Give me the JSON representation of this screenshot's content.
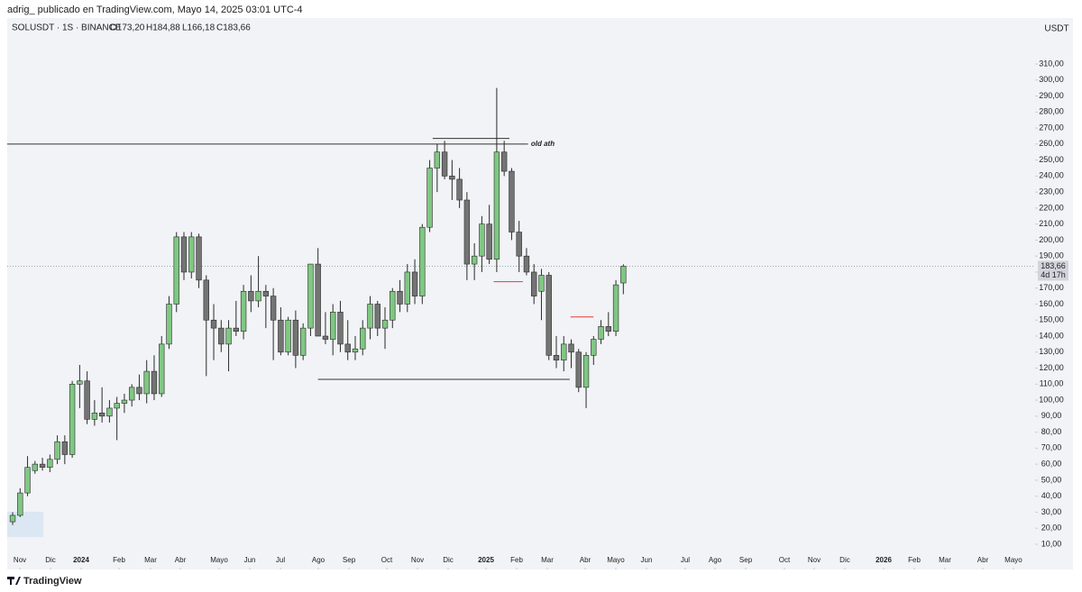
{
  "header": {
    "publisher": "adrig_ publicado en TradingView.com, Mayo 14, 2025 03:01 UTC-4",
    "symbol": "SOLUSDT · 1S · BINANCE",
    "ohlc": [
      "O173,20",
      "H184,88",
      "L166,18",
      "C183,66"
    ]
  },
  "footer": {
    "brand": "TradingView"
  },
  "chart_data": {
    "type": "candlestick",
    "unit": "USDT",
    "x": [
      0,
      1,
      2,
      3,
      4,
      5,
      6,
      7,
      8,
      9,
      10,
      11,
      12,
      13,
      14,
      15,
      16,
      17,
      18,
      19,
      20,
      21,
      22,
      23,
      24,
      25,
      26,
      27,
      28,
      29,
      30,
      31,
      32,
      33,
      34,
      35,
      36,
      37,
      38,
      39,
      40,
      41,
      42,
      43,
      44,
      45,
      46,
      47,
      48,
      49,
      50,
      51,
      52,
      53,
      54,
      55,
      56,
      57,
      58,
      59,
      60,
      61,
      62,
      63,
      64,
      65,
      66,
      67,
      68,
      69,
      70,
      71,
      72,
      73,
      74,
      75,
      76,
      77,
      78,
      79,
      80,
      81,
      82
    ],
    "open": [
      24,
      28,
      42,
      56,
      60,
      58,
      63,
      74,
      66,
      110,
      112,
      88,
      92,
      90,
      95,
      98,
      100,
      108,
      104,
      118,
      104,
      135,
      160,
      202,
      180,
      202,
      175,
      150,
      145,
      135,
      145,
      143,
      168,
      162,
      168,
      165,
      150,
      130,
      150,
      128,
      145,
      185,
      140,
      138,
      155,
      135,
      130,
      132,
      145,
      160,
      145,
      150,
      168,
      160,
      180,
      165,
      208,
      245,
      255,
      240,
      238,
      225,
      185,
      190,
      210,
      188,
      255,
      243,
      205,
      190,
      180,
      168,
      178,
      128,
      125,
      135,
      130,
      108,
      128,
      138,
      146,
      143,
      173.2
    ],
    "high": [
      30,
      45,
      65,
      62,
      64,
      66,
      78,
      78,
      112,
      122,
      118,
      100,
      108,
      100,
      102,
      104,
      110,
      116,
      125,
      128,
      140,
      165,
      205,
      205,
      205,
      204,
      178,
      160,
      150,
      150,
      162,
      172,
      178,
      190,
      172,
      170,
      158,
      152,
      156,
      148,
      185,
      195,
      155,
      160,
      162,
      150,
      140,
      150,
      165,
      162,
      158,
      170,
      175,
      185,
      188,
      210,
      250,
      260,
      262,
      250,
      245,
      230,
      198,
      215,
      222,
      295,
      262,
      245,
      212,
      195,
      185,
      182,
      180,
      140,
      140,
      138,
      132,
      130,
      140,
      150,
      155,
      175,
      184.88
    ],
    "low": [
      22,
      27,
      40,
      54,
      56,
      55,
      60,
      60,
      64,
      95,
      85,
      84,
      86,
      86,
      75,
      92,
      96,
      100,
      98,
      100,
      102,
      132,
      155,
      175,
      176,
      170,
      115,
      125,
      130,
      118,
      140,
      138,
      155,
      158,
      145,
      125,
      128,
      128,
      120,
      125,
      140,
      140,
      135,
      128,
      130,
      125,
      125,
      128,
      138,
      140,
      132,
      145,
      155,
      155,
      160,
      160,
      205,
      230,
      238,
      225,
      220,
      175,
      175,
      180,
      185,
      180,
      240,
      200,
      180,
      178,
      160,
      150,
      125,
      120,
      118,
      120,
      105,
      95,
      122,
      135,
      140,
      140,
      166.18
    ],
    "close": [
      28,
      42,
      58,
      60,
      58,
      63,
      74,
      66,
      110,
      112,
      88,
      92,
      90,
      95,
      98,
      100,
      108,
      104,
      118,
      104,
      135,
      160,
      202,
      180,
      202,
      175,
      150,
      145,
      135,
      145,
      143,
      168,
      162,
      168,
      165,
      150,
      130,
      150,
      128,
      145,
      185,
      140,
      138,
      155,
      135,
      130,
      132,
      145,
      160,
      145,
      150,
      168,
      160,
      180,
      165,
      208,
      245,
      255,
      240,
      238,
      225,
      185,
      190,
      210,
      188,
      255,
      243,
      205,
      190,
      180,
      165,
      178,
      128,
      125,
      135,
      130,
      108,
      128,
      138,
      146,
      143,
      172,
      183.66
    ],
    "up_color": "#80c783",
    "down_color": "#747474",
    "xlim": [
      -0.73,
      137.29
    ],
    "ylim": [
      -5.8,
      337.6
    ],
    "xticks": [
      {
        "value": 0.97,
        "label": "Nov"
      },
      {
        "value": 5.08,
        "label": "Dic"
      },
      {
        "value": 9.2,
        "label": "2024"
      },
      {
        "value": 14.29,
        "label": "Feb"
      },
      {
        "value": 18.52,
        "label": "Mar"
      },
      {
        "value": 22.52,
        "label": "Abr"
      },
      {
        "value": 27.72,
        "label": "Mayo"
      },
      {
        "value": 31.84,
        "label": "Jun"
      },
      {
        "value": 35.96,
        "label": "Jul"
      },
      {
        "value": 41.04,
        "label": "Ago"
      },
      {
        "value": 45.16,
        "label": "Sep"
      },
      {
        "value": 50.24,
        "label": "Oct"
      },
      {
        "value": 54.36,
        "label": "Nov"
      },
      {
        "value": 58.47,
        "label": "Dic"
      },
      {
        "value": 63.56,
        "label": "2025"
      },
      {
        "value": 67.68,
        "label": "Feb"
      },
      {
        "value": 71.79,
        "label": "Mar"
      },
      {
        "value": 76.88,
        "label": "Abr"
      },
      {
        "value": 80.99,
        "label": "Mayo"
      },
      {
        "value": 85.11,
        "label": "Jun"
      },
      {
        "value": 90.31,
        "label": "Jul"
      },
      {
        "value": 94.31,
        "label": "Ago"
      },
      {
        "value": 98.43,
        "label": "Sep"
      },
      {
        "value": 103.63,
        "label": "Oct"
      },
      {
        "value": 107.63,
        "label": "Nov"
      },
      {
        "value": 111.74,
        "label": "Dic"
      },
      {
        "value": 116.95,
        "label": "2026"
      },
      {
        "value": 121.07,
        "label": "Feb"
      },
      {
        "value": 125.18,
        "label": "Mar"
      },
      {
        "value": 130.27,
        "label": "Abr"
      },
      {
        "value": 134.38,
        "label": "Mayo"
      }
    ],
    "yticks": [
      {
        "value": 10,
        "label": "10,00"
      },
      {
        "value": 20,
        "label": "20,00"
      },
      {
        "value": 30,
        "label": "30,00"
      },
      {
        "value": 40,
        "label": "40,00"
      },
      {
        "value": 50,
        "label": "50,00"
      },
      {
        "value": 60,
        "label": "60,00"
      },
      {
        "value": 70,
        "label": "70,00"
      },
      {
        "value": 80,
        "label": "80,00"
      },
      {
        "value": 90,
        "label": "90,00"
      },
      {
        "value": 100,
        "label": "100,00"
      },
      {
        "value": 110,
        "label": "110,00"
      },
      {
        "value": 120,
        "label": "120,00"
      },
      {
        "value": 130,
        "label": "130,00"
      },
      {
        "value": 140,
        "label": "140,00"
      },
      {
        "value": 150,
        "label": "150,00"
      },
      {
        "value": 160,
        "label": "160,00"
      },
      {
        "value": 170,
        "label": "170,00"
      },
      {
        "value": 180,
        "label": "180,00"
      },
      {
        "value": 190,
        "label": "190,00"
      },
      {
        "value": 200,
        "label": "200,00"
      },
      {
        "value": 210,
        "label": "210,00"
      },
      {
        "value": 220,
        "label": "220,00"
      },
      {
        "value": 230,
        "label": "230,00"
      },
      {
        "value": 240,
        "label": "240,00"
      },
      {
        "value": 250,
        "label": "250,00"
      },
      {
        "value": 260,
        "label": "260,00"
      },
      {
        "value": 270,
        "label": "270,00"
      },
      {
        "value": 280,
        "label": "280,00"
      },
      {
        "value": 290,
        "label": "290,00"
      },
      {
        "value": 300,
        "label": "300,00"
      },
      {
        "value": 310,
        "label": "310,00"
      }
    ],
    "last_price": {
      "value": 183.66,
      "label": "183,66",
      "countdown": "4d 17h"
    },
    "levels": [
      {
        "y": 260,
        "x": [
          -0.73,
          69.2
        ],
        "color": "#333333"
      },
      {
        "y": 263.5,
        "x": [
          56.4,
          66.7
        ],
        "color": "#333333"
      },
      {
        "y": 113,
        "x": [
          41.0,
          74.8
        ],
        "color": "#333333"
      },
      {
        "y": 174,
        "x": [
          64.6,
          68.5
        ],
        "color": "#e53935"
      },
      {
        "y": 152,
        "x": [
          74.9,
          78
        ],
        "color": "#e53935"
      }
    ],
    "annotation": {
      "text": "old ath",
      "x": 69.6,
      "y": 260,
      "color": "#e0305a"
    }
  }
}
